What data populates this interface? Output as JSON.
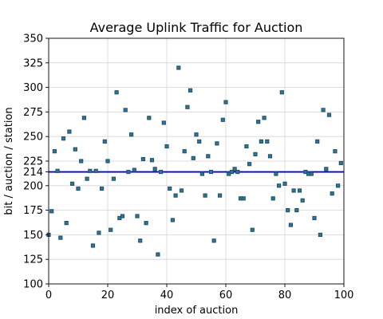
{
  "chart_data": {
    "type": "scatter",
    "title": "Average Uplink Traffic for Auction",
    "xlabel": "index of auction",
    "ylabel": "bit / auction / station",
    "xlim": [
      0,
      100
    ],
    "ylim": [
      100,
      350
    ],
    "xticks": [
      0,
      20,
      40,
      60,
      80,
      100
    ],
    "yticks": [
      100,
      125,
      150,
      175,
      200,
      214,
      225,
      250,
      275,
      300,
      325,
      350
    ],
    "grid": true,
    "point_color": "#1f77b4",
    "point_edge_color": "#2f4f4f",
    "reference_line": {
      "y": 214,
      "color": "#0000cc"
    },
    "series": [
      {
        "x": [
          0,
          1,
          2,
          3,
          4,
          5,
          6,
          7,
          8,
          9,
          10,
          11,
          12,
          13,
          14,
          15,
          16,
          17,
          18,
          19,
          20,
          21,
          22,
          23,
          24,
          25,
          26,
          27,
          28,
          29,
          30,
          31,
          32,
          33,
          34,
          35,
          36,
          37,
          38,
          39,
          40,
          41,
          42,
          43,
          44,
          45,
          46,
          47,
          48,
          49,
          50,
          51,
          52,
          53,
          54,
          55,
          56,
          57,
          58,
          59,
          60,
          61,
          62,
          63,
          64,
          65,
          66,
          67,
          68,
          69,
          70,
          71,
          72,
          73,
          74,
          75,
          76,
          77,
          78,
          79,
          80,
          81,
          82,
          83,
          84,
          85,
          86,
          87,
          88,
          89,
          90,
          91,
          92,
          93,
          94,
          95,
          96,
          97,
          98,
          99
        ],
        "y": [
          150,
          174,
          235,
          215,
          147,
          248,
          162,
          255,
          202,
          237,
          197,
          225,
          269,
          207,
          215,
          139,
          215,
          152,
          197,
          245,
          225,
          155,
          207,
          295,
          167,
          169,
          277,
          214,
          252,
          216,
          169,
          144,
          227,
          162,
          269,
          226,
          217,
          130,
          214,
          264,
          240,
          197,
          165,
          190,
          320,
          195,
          235,
          280,
          297,
          228,
          252,
          245,
          212,
          190,
          230,
          214,
          144,
          243,
          190,
          267,
          285,
          212,
          214,
          217,
          214,
          187,
          187,
          240,
          222,
          155,
          232,
          265,
          245,
          269,
          245,
          230,
          187,
          212,
          200,
          295,
          202,
          175,
          160,
          195,
          175,
          195,
          185,
          214,
          212,
          212,
          167,
          245,
          150,
          277,
          217,
          272,
          192,
          235,
          200,
          223
        ]
      }
    ]
  }
}
